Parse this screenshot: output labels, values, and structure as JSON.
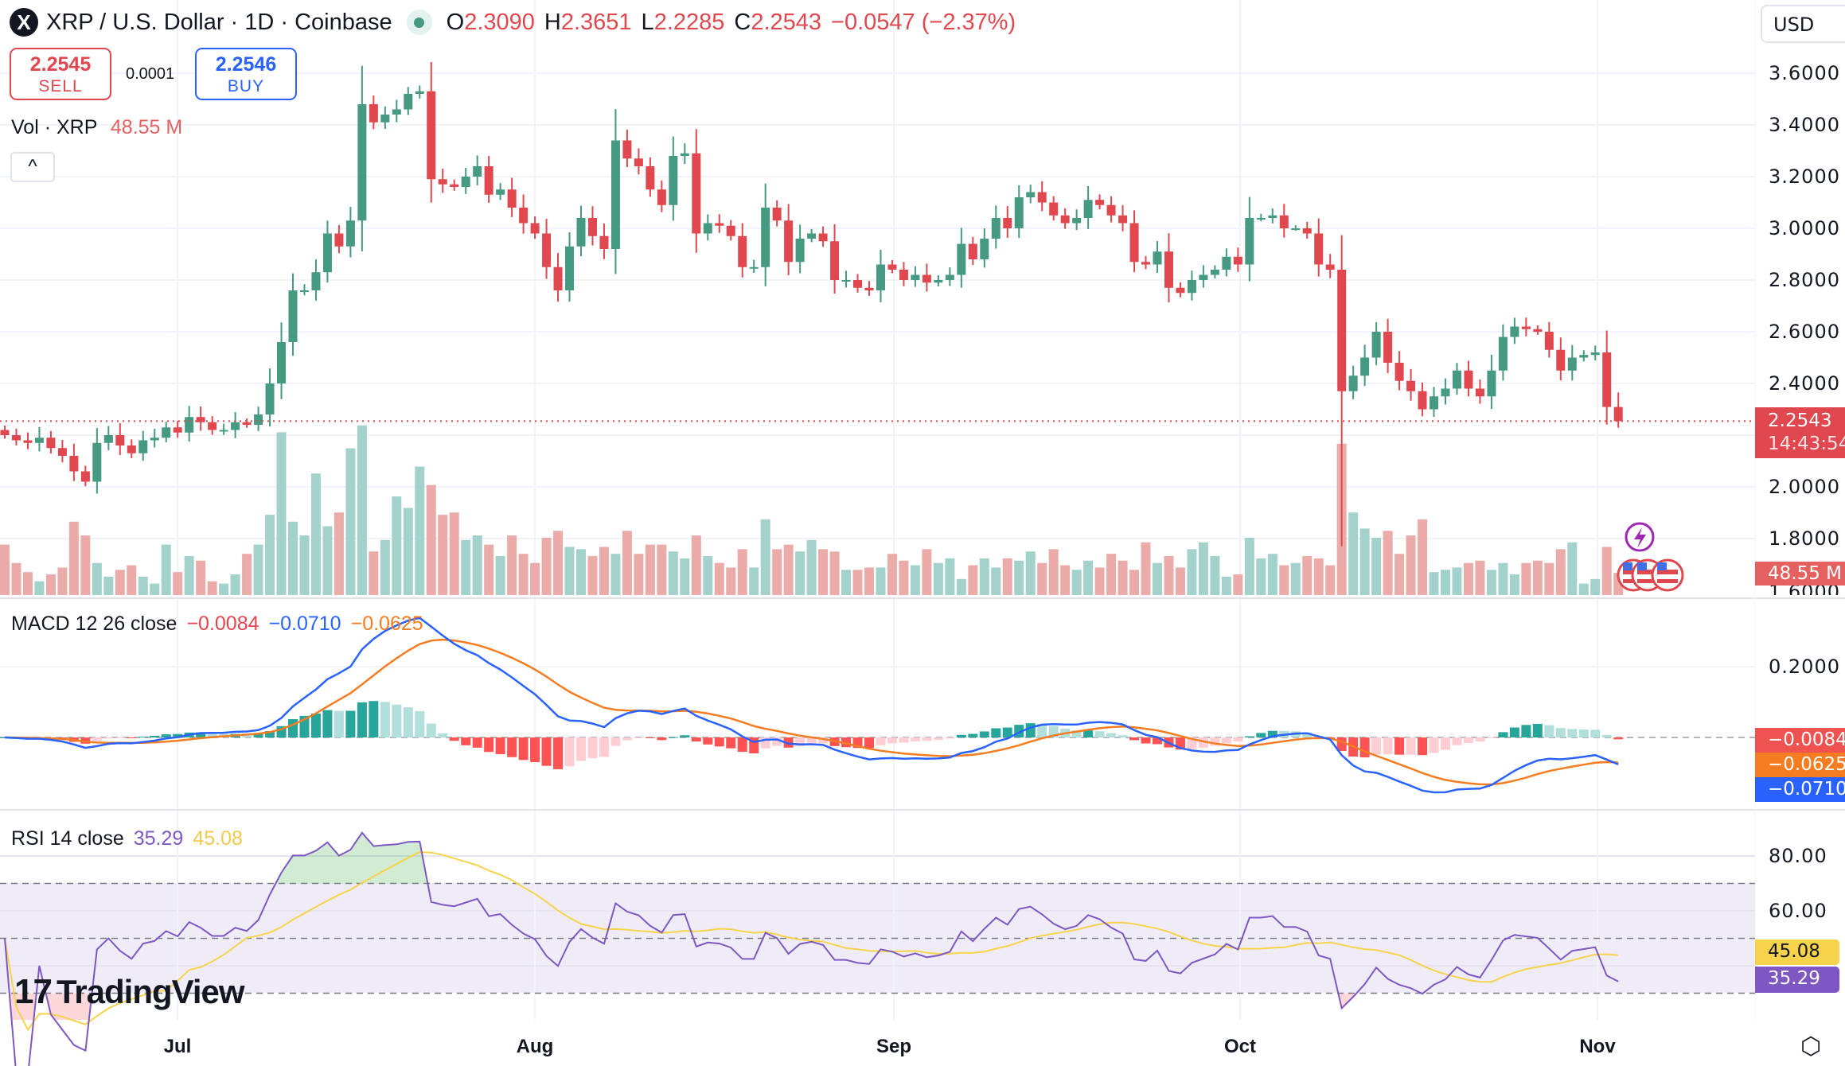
{
  "header": {
    "symbol_logo": "X",
    "title": "XRP / U.S. Dollar · 1D · Coinbase",
    "open_label": "O",
    "open": "2.3090",
    "high_label": "H",
    "high": "2.3651",
    "low_label": "L",
    "low": "2.2285",
    "close_label": "C",
    "close": "2.2543",
    "change": "−0.0547 (−2.37%)",
    "market_status": "open"
  },
  "trade": {
    "sell_price": "2.2545",
    "sell_label": "SELL",
    "spread": "0.0001",
    "buy_price": "2.2546",
    "buy_label": "BUY"
  },
  "volume_legend": {
    "label": "Vol · XRP",
    "value": "48.55 M"
  },
  "collapse_icon": "^",
  "currency": "USD",
  "price_axis": [
    "3.6000",
    "3.4000",
    "3.2000",
    "3.0000",
    "2.8000",
    "2.6000",
    "2.4000",
    "2.0000",
    "1.8000",
    "1.6000"
  ],
  "price_tag": {
    "price": "2.2543",
    "countdown": "14:43:54"
  },
  "volume_tag": "48.55 M",
  "macd": {
    "legend": "MACD 12 26 close",
    "hist": "−0.0084",
    "macd": "−0.0710",
    "signal": "−0.0625",
    "axis": [
      "0.2000"
    ],
    "tags": [
      "−0.0084",
      "−0.0625",
      "−0.0710"
    ]
  },
  "rsi": {
    "legend": "RSI 14 close",
    "rsi": "35.29",
    "ma": "45.08",
    "axis": [
      "80.00",
      "60.00"
    ],
    "tags": [
      "45.08",
      "35.29"
    ]
  },
  "time_axis": [
    "Jul",
    "Aug",
    "Sep",
    "Oct",
    "Nov"
  ],
  "branding": "TradingView",
  "colors": {
    "up": "#459a81",
    "down": "#e0474f",
    "vol_up": "#a3d2cc",
    "vol_down": "#ebaca9",
    "macd_line": "#2962ff",
    "signal_line": "#f57c20",
    "rsi_line": "#7e57c2",
    "rsi_ma": "#f7d34c",
    "rsi_band": "#efecf8"
  },
  "chart_data": {
    "type": "candlestick",
    "interval": "1D",
    "x_ticks": [
      "Jul",
      "Aug",
      "Sep",
      "Oct",
      "Nov"
    ],
    "ylim": [
      1.6,
      3.65
    ],
    "grid": true,
    "months": [
      {
        "month": "Jun",
        "first_day": 16,
        "close": [
          2.2,
          2.18,
          2.17,
          2.19,
          2.15,
          2.12,
          2.06,
          2.02,
          2.17,
          2.2,
          2.16,
          2.13,
          2.18,
          2.19,
          2.23
        ],
        "volume_m": [
          110,
          70,
          50,
          30,
          45,
          60,
          160,
          130,
          70,
          40,
          55,
          65,
          40,
          25,
          110
        ]
      },
      {
        "month": "Jul",
        "first_day": 1,
        "close": [
          2.21,
          2.27,
          2.25,
          2.22,
          2.22,
          2.25,
          2.24,
          2.28,
          2.4,
          2.56,
          2.76,
          2.76,
          2.83,
          2.98,
          2.93,
          3.03,
          3.48,
          3.41,
          3.44,
          3.46,
          3.52,
          3.53,
          3.19,
          3.17,
          3.16,
          3.2,
          3.24,
          3.13,
          3.15,
          3.08,
          3.02
        ],
        "volume_m": [
          50,
          85,
          75,
          30,
          25,
          45,
          90,
          110,
          175,
          355,
          160,
          130,
          265,
          150,
          180,
          320,
          370,
          95,
          120,
          215,
          190,
          280,
          240,
          175,
          180,
          120,
          130,
          110,
          85,
          130,
          90
        ]
      },
      {
        "month": "Aug",
        "first_day": 1,
        "close": [
          2.98,
          2.85,
          2.76,
          2.93,
          3.04,
          2.97,
          2.92,
          3.34,
          3.27,
          3.24,
          3.15,
          3.09,
          3.28,
          3.29,
          2.98,
          3.02,
          3.01,
          2.97,
          2.85,
          2.85,
          3.08,
          3.03,
          2.87,
          2.96,
          2.98,
          2.95,
          2.8,
          2.8,
          2.77,
          2.76,
          2.86
        ],
        "volume_m": [
          70,
          125,
          140,
          105,
          100,
          85,
          105,
          90,
          140,
          90,
          110,
          110,
          95,
          80,
          130,
          85,
          70,
          60,
          100,
          60,
          165,
          100,
          110,
          95,
          120,
          100,
          95,
          55,
          55,
          60,
          60
        ]
      },
      {
        "month": "Sep",
        "first_day": 1,
        "close": [
          2.84,
          2.8,
          2.82,
          2.79,
          2.8,
          2.82,
          2.94,
          2.88,
          2.96,
          3.04,
          3.0,
          3.12,
          3.14,
          3.1,
          3.05,
          3.02,
          3.04,
          3.11,
          3.09,
          3.05,
          3.02,
          2.87,
          2.86,
          2.91,
          2.77,
          2.75,
          2.8,
          2.82,
          2.84,
          2.89
        ],
        "volume_m": [
          90,
          75,
          65,
          100,
          70,
          80,
          35,
          65,
          80,
          60,
          80,
          75,
          95,
          70,
          100,
          65,
          55,
          75,
          60,
          90,
          75,
          55,
          115,
          70,
          85,
          60,
          100,
          115,
          85,
          40
        ]
      },
      {
        "month": "Oct",
        "first_day": 1,
        "close": [
          2.86,
          3.04,
          3.04,
          3.05,
          3.0,
          3.0,
          2.98,
          2.86,
          2.84,
          2.37,
          2.43,
          2.5,
          2.6,
          2.48,
          2.41,
          2.37,
          2.3,
          2.35,
          2.38,
          2.45,
          2.38,
          2.35,
          2.45,
          2.58,
          2.62,
          2.61,
          2.6,
          2.53,
          2.45,
          2.5,
          2.51
        ],
        "volume_m": [
          45,
          125,
          80,
          90,
          65,
          70,
          85,
          80,
          65,
          330,
          180,
          145,
          125,
          140,
          90,
          130,
          165,
          50,
          55,
          60,
          70,
          75,
          55,
          70,
          45,
          70,
          75,
          70,
          100,
          115,
          25
        ]
      },
      {
        "month": "Nov",
        "first_day": 1,
        "close": [
          2.52,
          2.309,
          2.2543
        ],
        "volume_m": [
          35,
          105,
          48.55
        ]
      }
    ],
    "notable_lows": [
      {
        "month": "Oct",
        "day": 10,
        "low": 1.77
      }
    ],
    "last_candle": {
      "open": 2.309,
      "high": 2.3651,
      "low": 2.2285,
      "close": 2.2543
    },
    "indicators": {
      "macd": {
        "fast": 12,
        "slow": 26,
        "signal": 9,
        "source": "close",
        "zero_line": "dashed"
      },
      "rsi": {
        "length": 14,
        "source": "close",
        "ma_length": 14,
        "bands": [
          70,
          50,
          30
        ],
        "ylim": [
          20,
          95
        ]
      }
    }
  }
}
